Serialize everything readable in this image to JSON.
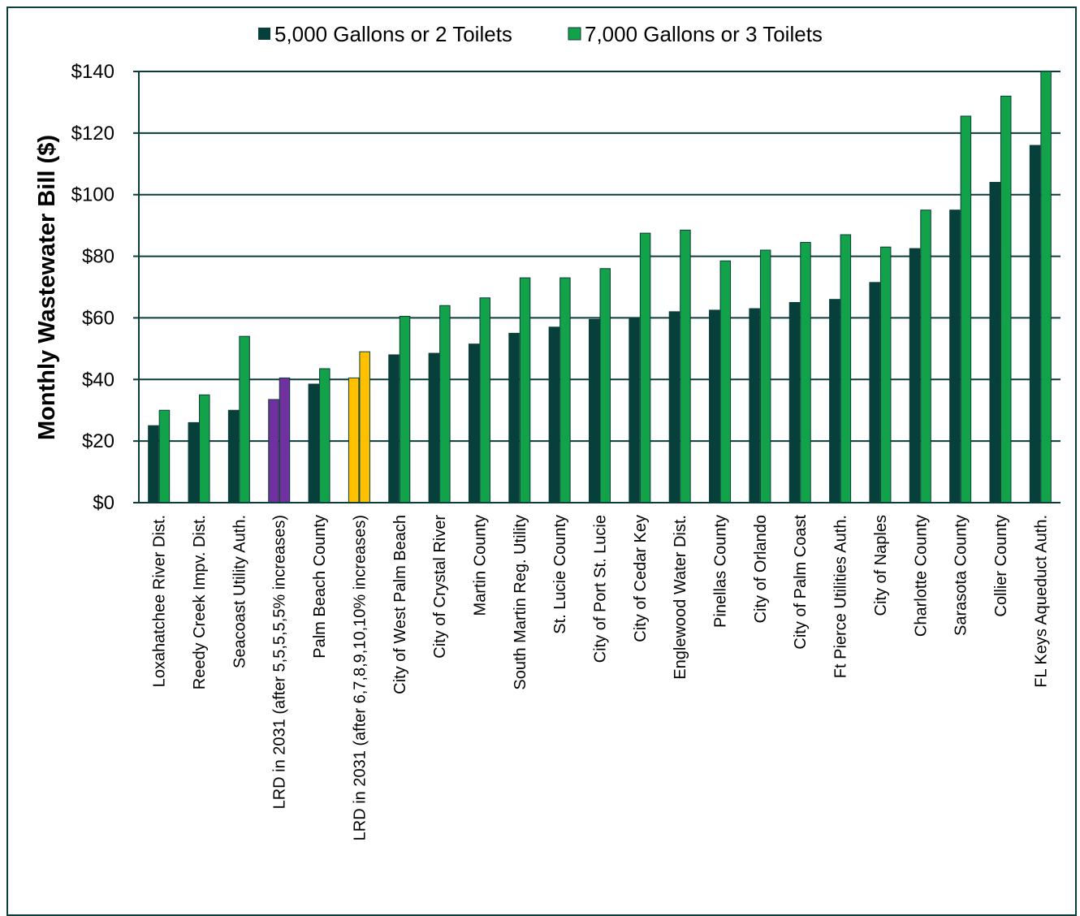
{
  "chart_data": {
    "type": "bar",
    "ylabel": "Monthly Wastewater Bill ($)",
    "ylim": [
      0,
      140
    ],
    "yticks": [
      0,
      20,
      40,
      60,
      80,
      100,
      120,
      140
    ],
    "ytick_labels": [
      "$0",
      "$20",
      "$40",
      "$60",
      "$80",
      "$100",
      "$120",
      "$140"
    ],
    "grid": true,
    "legend_position": "top-center",
    "categories": [
      "Loxahatchee River Dist.",
      "Reedy Creek Impv. Dist.",
      "Seacoast Utility Auth.",
      "LRD in 2031 (after 5,5,5,5,5% increases)",
      "Palm Beach County",
      "LRD in 2031 (after 6,7,8,9,10,10% increases)",
      "City of West Palm Beach",
      "City of Crystal River",
      "Martin County",
      "South Martin Reg. Utility",
      "St. Lucie County",
      "City of Port St. Lucie",
      "City of Cedar Key",
      "Englewood Water Dist.",
      "Pinellas County",
      "City of Orlando",
      "City of Palm Coast",
      "Ft Pierce Utilities Auth.",
      "City of Naples",
      "Charlotte County",
      "Sarasota County",
      "Collier County",
      "FL Keys Aqueduct Auth."
    ],
    "series": [
      {
        "name": "5,000 Gallons or 2 Toilets",
        "color": "#073f3b",
        "values": [
          25,
          26,
          30,
          33.5,
          38.5,
          40.5,
          48,
          48.5,
          51.5,
          55,
          57,
          59.5,
          60,
          62,
          62.5,
          63,
          65,
          66,
          71.5,
          82.5,
          95,
          104,
          116
        ]
      },
      {
        "name": "7,000 Gallons or 3 Toilets",
        "color": "#12a34a",
        "values": [
          30,
          35,
          54,
          40.5,
          43.5,
          49,
          60.5,
          64,
          66.5,
          73,
          73,
          76,
          87.5,
          88.5,
          78.5,
          82,
          84.5,
          87,
          83,
          95,
          125.5,
          132,
          140
        ]
      }
    ],
    "highlight_colors": {
      "LRD in 2031 (after 5,5,5,5,5% increases)": "#7030a0",
      "LRD in 2031 (after 6,7,8,9,10,10% increases)": "#ffc000"
    }
  },
  "colors": {
    "grid": "#0b3d3a",
    "border": "#0b3d3a",
    "bar_outline": "#0b3d3a"
  }
}
